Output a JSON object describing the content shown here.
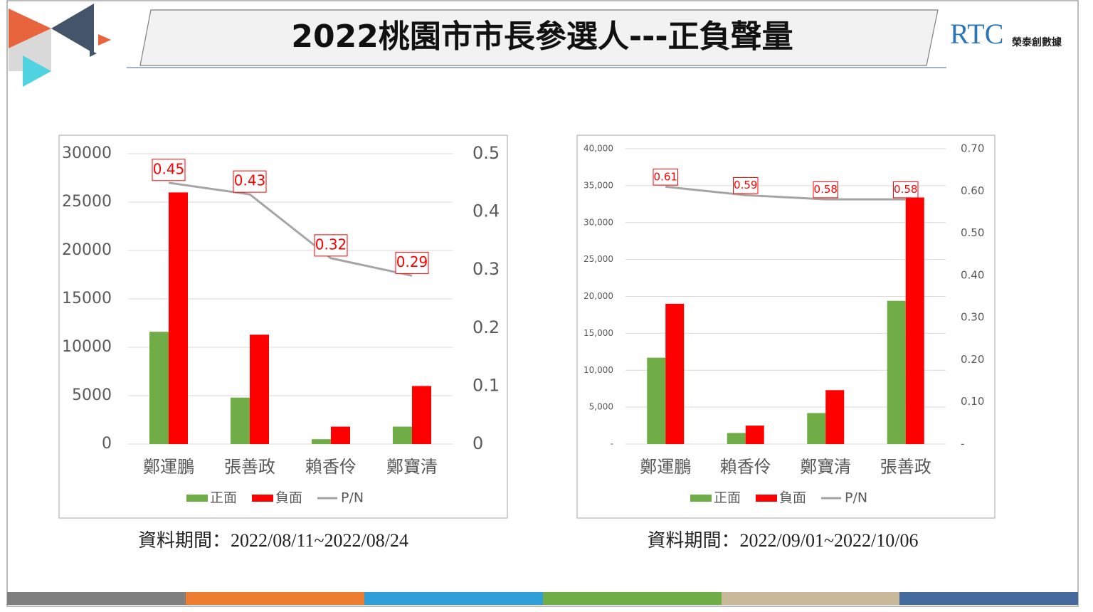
{
  "title": "2022桃園市市長參選人---正負聲量",
  "logo": {
    "brand": "RTC",
    "name": "榮泰創數據"
  },
  "chart_data": [
    {
      "type": "bar",
      "caption": "資料期間：2022/08/11~2022/08/24",
      "categories": [
        "鄭運鵬",
        "張善政",
        "賴香伶",
        "鄭寶清"
      ],
      "series": [
        {
          "name": "正面",
          "color": "#70ad47",
          "values": [
            11600,
            4800,
            500,
            1800
          ]
        },
        {
          "name": "負面",
          "color": "#ff0000",
          "values": [
            26000,
            11300,
            1800,
            6000
          ]
        },
        {
          "name": "P/N",
          "type": "line",
          "axis": "y2",
          "color": "#a5a5a5",
          "values": [
            0.45,
            0.43,
            0.32,
            0.29
          ]
        }
      ],
      "ylim": [
        0,
        30000
      ],
      "yticks": [
        0,
        5000,
        10000,
        15000,
        20000,
        25000,
        30000
      ],
      "y2lim": [
        0,
        0.5
      ],
      "y2ticks": [
        0,
        0.1,
        0.2,
        0.3,
        0.4,
        0.5
      ],
      "grid": true,
      "legend": "bottom"
    },
    {
      "type": "bar",
      "caption": "資料期間：2022/09/01~2022/10/06",
      "categories": [
        "鄭運鵬",
        "賴香伶",
        "鄭寶清",
        "張善政"
      ],
      "series": [
        {
          "name": "正面",
          "color": "#70ad47",
          "values": [
            11700,
            1500,
            4200,
            19400
          ]
        },
        {
          "name": "負面",
          "color": "#ff0000",
          "values": [
            19000,
            2500,
            7300,
            33400
          ]
        },
        {
          "name": "P/N",
          "type": "line",
          "axis": "y2",
          "color": "#a5a5a5",
          "values": [
            0.61,
            0.59,
            0.58,
            0.58
          ]
        }
      ],
      "ylim": [
        0,
        40000
      ],
      "yticks": [
        {
          "value": 0,
          "label": "-"
        },
        {
          "value": 5000,
          "label": "5,000"
        },
        {
          "value": 10000,
          "label": "10,000"
        },
        {
          "value": 15000,
          "label": "15,000"
        },
        {
          "value": 20000,
          "label": "20,000"
        },
        {
          "value": 25000,
          "label": "25,000"
        },
        {
          "value": 30000,
          "label": "30,000"
        },
        {
          "value": 35000,
          "label": "35,000"
        },
        {
          "value": 40000,
          "label": "40,000"
        }
      ],
      "y2lim": [
        0,
        0.7
      ],
      "y2ticks": [
        {
          "value": 0,
          "label": "-"
        },
        {
          "value": 0.1,
          "label": "0.10"
        },
        {
          "value": 0.2,
          "label": "0.20"
        },
        {
          "value": 0.3,
          "label": "0.30"
        },
        {
          "value": 0.4,
          "label": "0.40"
        },
        {
          "value": 0.5,
          "label": "0.50"
        },
        {
          "value": 0.6,
          "label": "0.60"
        },
        {
          "value": 0.7,
          "label": "0.70"
        }
      ],
      "grid": true,
      "legend": "bottom"
    }
  ]
}
